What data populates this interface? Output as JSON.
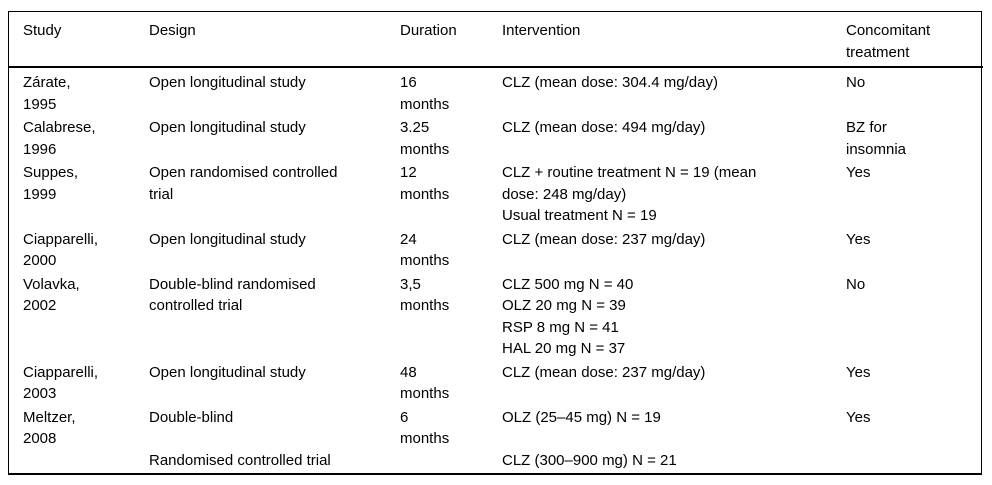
{
  "page": {
    "background_color": "#ffffff",
    "text_color": "#000000",
    "border_color": "#000000"
  },
  "table": {
    "columns": [
      {
        "key": "study",
        "label": "Study"
      },
      {
        "key": "design",
        "label": "Design"
      },
      {
        "key": "duration",
        "label": "Duration"
      },
      {
        "key": "intervention",
        "label": "Intervention"
      },
      {
        "key": "concomitant",
        "label": "Concomitant treatment"
      }
    ],
    "rows": [
      {
        "study": [
          "Zárate,",
          "1995"
        ],
        "design": [
          "Open longitudinal study"
        ],
        "duration": [
          "16",
          "months"
        ],
        "intervention": [
          "CLZ (mean dose: 304.4 mg/day)"
        ],
        "concomitant": [
          "No"
        ]
      },
      {
        "study": [
          "Calabrese,",
          "1996"
        ],
        "design": [
          "Open longitudinal study"
        ],
        "duration": [
          "3.25",
          "months"
        ],
        "intervention": [
          "CLZ (mean dose: 494 mg/day)"
        ],
        "concomitant": [
          "BZ for",
          "insomnia"
        ]
      },
      {
        "study": [
          "Suppes,",
          "1999"
        ],
        "design": [
          "Open randomised controlled",
          "trial"
        ],
        "duration": [
          "12",
          "months"
        ],
        "intervention": [
          "CLZ + routine treatment N = 19 (mean",
          "dose: 248 mg/day)",
          "Usual treatment N = 19"
        ],
        "concomitant": [
          "Yes"
        ]
      },
      {
        "study": [
          "Ciapparelli,",
          "2000"
        ],
        "design": [
          "Open longitudinal study"
        ],
        "duration": [
          "24",
          "months"
        ],
        "intervention": [
          "CLZ (mean dose: 237 mg/day)"
        ],
        "concomitant": [
          "Yes"
        ]
      },
      {
        "study": [
          "Volavka,",
          "2002"
        ],
        "design": [
          "Double-blind randomised",
          "controlled trial"
        ],
        "duration": [
          "3,5",
          "months"
        ],
        "intervention": [
          "CLZ 500 mg N = 40",
          "OLZ 20 mg N = 39",
          "RSP 8 mg N = 41",
          "HAL 20 mg N = 37"
        ],
        "concomitant": [
          "No"
        ]
      },
      {
        "study": [
          "Ciapparelli,",
          "2003"
        ],
        "design": [
          "Open longitudinal study"
        ],
        "duration": [
          "48",
          "months"
        ],
        "intervention": [
          "CLZ (mean dose: 237 mg/day)"
        ],
        "concomitant": [
          "Yes"
        ]
      },
      {
        "study": [
          "Meltzer,",
          "2008"
        ],
        "design": [
          "Double-blind",
          "",
          "Randomised controlled trial"
        ],
        "duration": [
          "6",
          "months"
        ],
        "intervention": [
          "OLZ (25–45 mg) N = 19",
          "",
          "CLZ (300–900 mg) N = 21"
        ],
        "concomitant": [
          "Yes"
        ]
      }
    ]
  }
}
